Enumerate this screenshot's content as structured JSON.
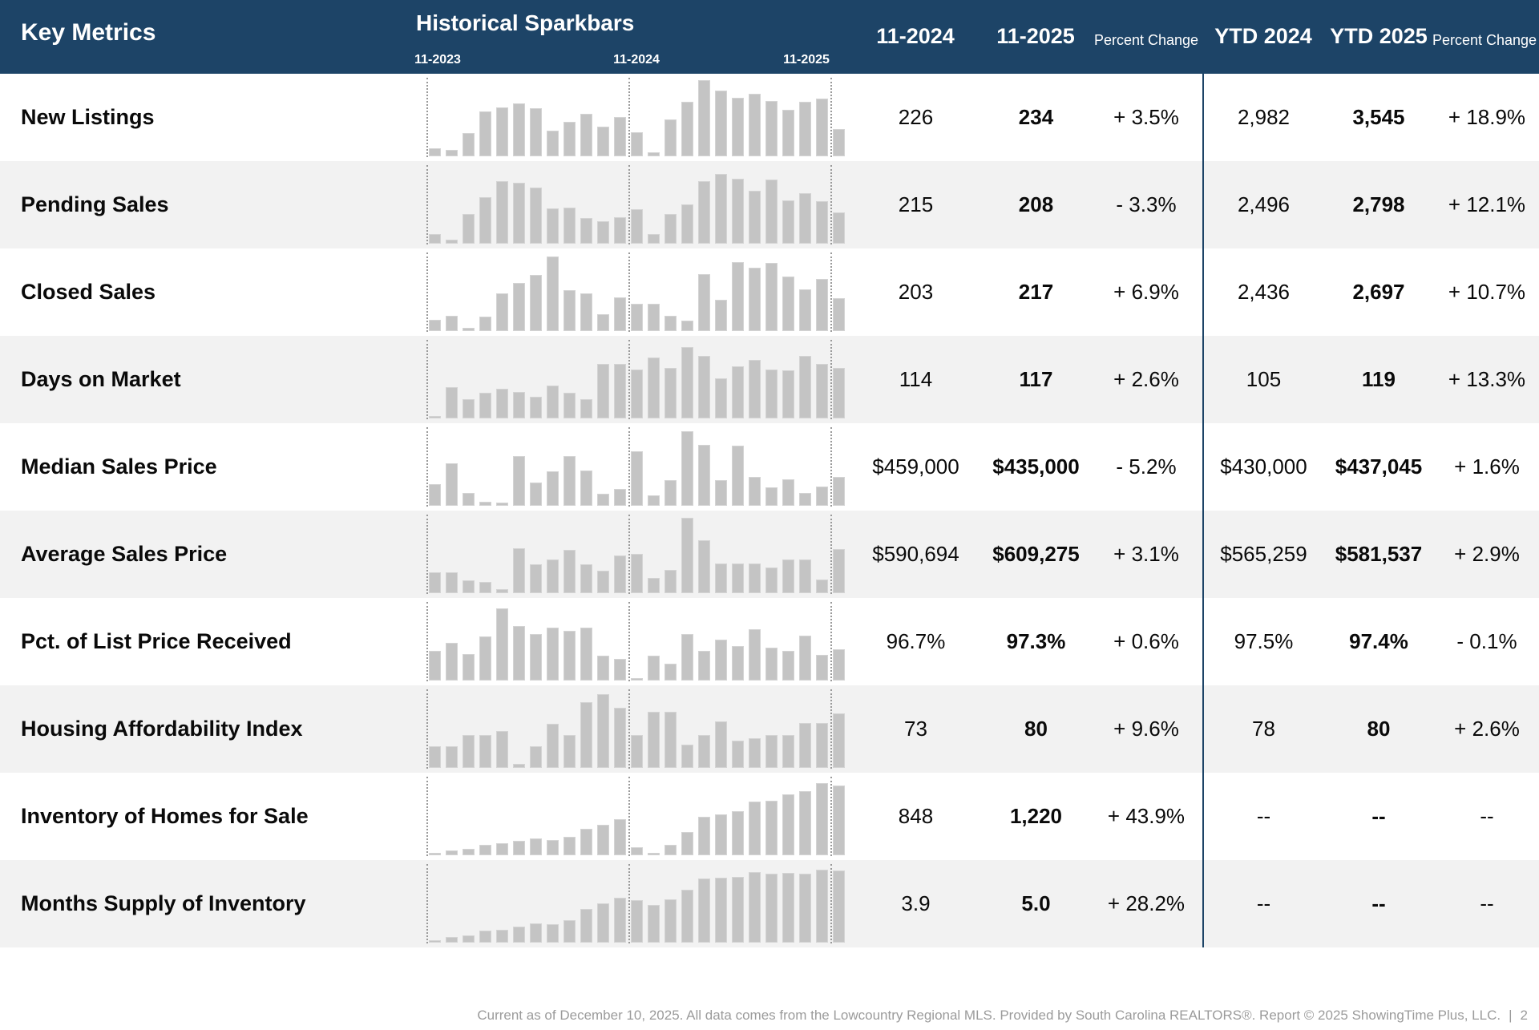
{
  "header": {
    "key_metrics_title": "Key Metrics",
    "sparkbars_title": "Historical Sparkbars",
    "spark_axis_labels": [
      "11-2023",
      "11-2024",
      "11-2025"
    ],
    "columns": {
      "month_2024": "11-2024",
      "month_2025": "11-2025",
      "percent_change": "Percent Change",
      "ytd_2024": "YTD 2024",
      "ytd_2025": "YTD 2025",
      "ytd_percent_change": "Percent Change"
    }
  },
  "rows": [
    {
      "label": "New Listings",
      "m2024": "226",
      "m2025": "234",
      "pct": "+ 3.5%",
      "ytd2024": "2,982",
      "ytd2025": "3,545",
      "ytd_pct": "+ 18.9%",
      "spark": [
        0.1,
        0.08,
        0.3,
        0.58,
        0.63,
        0.68,
        0.62,
        0.33,
        0.44,
        0.55,
        0.38,
        0.5,
        0.31,
        0.05,
        0.47,
        0.7,
        0.98,
        0.85,
        0.75,
        0.8,
        0.71,
        0.6,
        0.7,
        0.74,
        0.35
      ]
    },
    {
      "label": "Pending Sales",
      "m2024": "215",
      "m2025": "208",
      "pct": "- 3.3%",
      "ytd2024": "2,496",
      "ytd2025": "2,798",
      "ytd_pct": "+ 12.1%",
      "spark": [
        0.12,
        0.05,
        0.38,
        0.6,
        0.8,
        0.78,
        0.72,
        0.45,
        0.46,
        0.33,
        0.29,
        0.34,
        0.44,
        0.12,
        0.38,
        0.5,
        0.8,
        0.9,
        0.83,
        0.68,
        0.82,
        0.56,
        0.65,
        0.55,
        0.4
      ]
    },
    {
      "label": "Closed Sales",
      "m2024": "203",
      "m2025": "217",
      "pct": "+ 6.9%",
      "ytd2024": "2,436",
      "ytd2025": "2,697",
      "ytd_pct": "+ 10.7%",
      "spark": [
        0.14,
        0.2,
        0.04,
        0.19,
        0.48,
        0.62,
        0.72,
        0.96,
        0.53,
        0.48,
        0.22,
        0.43,
        0.35,
        0.35,
        0.2,
        0.13,
        0.73,
        0.4,
        0.89,
        0.81,
        0.88,
        0.7,
        0.54,
        0.67,
        0.42
      ]
    },
    {
      "label": "Days on Market",
      "m2024": "114",
      "m2025": "117",
      "pct": "+ 2.6%",
      "ytd2024": "105",
      "ytd2025": "119",
      "ytd_pct": "+ 13.3%",
      "spark": [
        0.03,
        0.4,
        0.25,
        0.33,
        0.38,
        0.34,
        0.28,
        0.42,
        0.33,
        0.25,
        0.7,
        0.7,
        0.63,
        0.78,
        0.65,
        0.92,
        0.8,
        0.52,
        0.67,
        0.75,
        0.63,
        0.62,
        0.8,
        0.7,
        0.65
      ]
    },
    {
      "label": "Median Sales Price",
      "m2024": "$459,000",
      "m2025": "$435,000",
      "pct": "- 5.2%",
      "ytd2024": "$430,000",
      "ytd2025": "$437,045",
      "ytd_pct": "+ 1.6%",
      "spark": [
        0.28,
        0.55,
        0.16,
        0.05,
        0.04,
        0.64,
        0.3,
        0.44,
        0.64,
        0.45,
        0.15,
        0.22,
        0.7,
        0.13,
        0.33,
        0.96,
        0.78,
        0.33,
        0.77,
        0.37,
        0.24,
        0.34,
        0.16,
        0.25,
        0.37
      ]
    },
    {
      "label": "Average Sales Price",
      "m2024": "$590,694",
      "m2025": "$609,275",
      "pct": "+ 3.1%",
      "ytd2024": "$565,259",
      "ytd2025": "$581,537",
      "ytd_pct": "+ 2.9%",
      "spark": [
        0.27,
        0.27,
        0.17,
        0.14,
        0.05,
        0.58,
        0.37,
        0.43,
        0.56,
        0.37,
        0.29,
        0.48,
        0.5,
        0.2,
        0.3,
        0.97,
        0.68,
        0.38,
        0.38,
        0.38,
        0.33,
        0.43,
        0.43,
        0.18,
        0.57
      ]
    },
    {
      "label": "Pct. of List Price Received",
      "m2024": "96.7%",
      "m2025": "97.3%",
      "pct": "+ 0.6%",
      "ytd2024": "97.5%",
      "ytd2025": "97.4%",
      "ytd_pct": "- 0.1%",
      "spark": [
        0.38,
        0.48,
        0.34,
        0.57,
        0.93,
        0.7,
        0.6,
        0.68,
        0.64,
        0.68,
        0.32,
        0.28,
        0.03,
        0.32,
        0.22,
        0.6,
        0.38,
        0.53,
        0.44,
        0.66,
        0.42,
        0.38,
        0.58,
        0.33,
        0.4
      ]
    },
    {
      "label": "Housing Affordability Index",
      "m2024": "73",
      "m2025": "80",
      "pct": "+ 9.6%",
      "ytd2024": "78",
      "ytd2025": "80",
      "ytd_pct": "+ 2.6%",
      "spark": [
        0.28,
        0.28,
        0.42,
        0.42,
        0.47,
        0.05,
        0.28,
        0.57,
        0.42,
        0.85,
        0.95,
        0.77,
        0.42,
        0.72,
        0.72,
        0.3,
        0.42,
        0.6,
        0.35,
        0.38,
        0.42,
        0.42,
        0.58,
        0.58,
        0.7
      ]
    },
    {
      "label": "Inventory of Homes for Sale",
      "m2024": "848",
      "m2025": "1,220",
      "pct": "+ 43.9%",
      "ytd2024": "--",
      "ytd2025": "--",
      "ytd_pct": "--",
      "spark": [
        0.03,
        0.06,
        0.08,
        0.13,
        0.15,
        0.19,
        0.22,
        0.2,
        0.24,
        0.34,
        0.39,
        0.46,
        0.1,
        0.03,
        0.13,
        0.3,
        0.49,
        0.53,
        0.57,
        0.69,
        0.7,
        0.78,
        0.82,
        0.93,
        0.9
      ]
    },
    {
      "label": "Months Supply of Inventory",
      "m2024": "3.9",
      "m2025": "5.0",
      "pct": "+ 28.2%",
      "ytd2024": "--",
      "ytd2025": "--",
      "ytd_pct": "--",
      "spark": [
        0.03,
        0.07,
        0.09,
        0.15,
        0.17,
        0.21,
        0.25,
        0.24,
        0.29,
        0.43,
        0.5,
        0.58,
        0.55,
        0.48,
        0.56,
        0.68,
        0.82,
        0.84,
        0.85,
        0.91,
        0.89,
        0.9,
        0.89,
        0.94,
        0.93
      ]
    }
  ],
  "footer": {
    "text": "Current as of December 10, 2025. All data comes from the Lowcountry Regional MLS. Provided by South Carolina REALTORS®. Report © 2025 ShowingTime Plus, LLC.",
    "separator": "|",
    "page_number": "2"
  },
  "colors": {
    "header_bg": "#1d4467",
    "row_alt_bg": "#f2f2f2",
    "bar_fill": "#c4c4c4",
    "gridline": "#9a9a9a",
    "column_divider": "#1d4467",
    "footer_text": "#9b9b9b"
  },
  "chart_data": {
    "type": "bar",
    "title": "Historical Sparkbars",
    "x_range": [
      "11-2023",
      "11-2025"
    ],
    "points_per_series": 25,
    "x_gridlines": [
      "11-2023",
      "11-2024",
      "11-2025"
    ],
    "ylabel": "relative bar height (0-1, per-row scaled)",
    "ylim": [
      0,
      1
    ],
    "legend_position": "none",
    "series": [
      {
        "name": "New Listings",
        "values": [
          0.1,
          0.08,
          0.3,
          0.58,
          0.63,
          0.68,
          0.62,
          0.33,
          0.44,
          0.55,
          0.38,
          0.5,
          0.31,
          0.05,
          0.47,
          0.7,
          0.98,
          0.85,
          0.75,
          0.8,
          0.71,
          0.6,
          0.7,
          0.74,
          0.35
        ]
      },
      {
        "name": "Pending Sales",
        "values": [
          0.12,
          0.05,
          0.38,
          0.6,
          0.8,
          0.78,
          0.72,
          0.45,
          0.46,
          0.33,
          0.29,
          0.34,
          0.44,
          0.12,
          0.38,
          0.5,
          0.8,
          0.9,
          0.83,
          0.68,
          0.82,
          0.56,
          0.65,
          0.55,
          0.4
        ]
      },
      {
        "name": "Closed Sales",
        "values": [
          0.14,
          0.2,
          0.04,
          0.19,
          0.48,
          0.62,
          0.72,
          0.96,
          0.53,
          0.48,
          0.22,
          0.43,
          0.35,
          0.35,
          0.2,
          0.13,
          0.73,
          0.4,
          0.89,
          0.81,
          0.88,
          0.7,
          0.54,
          0.67,
          0.42
        ]
      },
      {
        "name": "Days on Market",
        "values": [
          0.03,
          0.4,
          0.25,
          0.33,
          0.38,
          0.34,
          0.28,
          0.42,
          0.33,
          0.25,
          0.7,
          0.7,
          0.63,
          0.78,
          0.65,
          0.92,
          0.8,
          0.52,
          0.67,
          0.75,
          0.63,
          0.62,
          0.8,
          0.7,
          0.65
        ]
      },
      {
        "name": "Median Sales Price",
        "values": [
          0.28,
          0.55,
          0.16,
          0.05,
          0.04,
          0.64,
          0.3,
          0.44,
          0.64,
          0.45,
          0.15,
          0.22,
          0.7,
          0.13,
          0.33,
          0.96,
          0.78,
          0.33,
          0.77,
          0.37,
          0.24,
          0.34,
          0.16,
          0.25,
          0.37
        ]
      },
      {
        "name": "Average Sales Price",
        "values": [
          0.27,
          0.27,
          0.17,
          0.14,
          0.05,
          0.58,
          0.37,
          0.43,
          0.56,
          0.37,
          0.29,
          0.48,
          0.5,
          0.2,
          0.3,
          0.97,
          0.68,
          0.38,
          0.38,
          0.38,
          0.33,
          0.43,
          0.43,
          0.18,
          0.57
        ]
      },
      {
        "name": "Pct. of List Price Received",
        "values": [
          0.38,
          0.48,
          0.34,
          0.57,
          0.93,
          0.7,
          0.6,
          0.68,
          0.64,
          0.68,
          0.32,
          0.28,
          0.03,
          0.32,
          0.22,
          0.6,
          0.38,
          0.53,
          0.44,
          0.66,
          0.42,
          0.38,
          0.58,
          0.33,
          0.4
        ]
      },
      {
        "name": "Housing Affordability Index",
        "values": [
          0.28,
          0.28,
          0.42,
          0.42,
          0.47,
          0.05,
          0.28,
          0.57,
          0.42,
          0.85,
          0.95,
          0.77,
          0.42,
          0.72,
          0.72,
          0.3,
          0.42,
          0.6,
          0.35,
          0.38,
          0.42,
          0.42,
          0.58,
          0.58,
          0.7
        ]
      },
      {
        "name": "Inventory of Homes for Sale",
        "values": [
          0.03,
          0.06,
          0.08,
          0.13,
          0.15,
          0.19,
          0.22,
          0.2,
          0.24,
          0.34,
          0.39,
          0.46,
          0.1,
          0.03,
          0.13,
          0.3,
          0.49,
          0.53,
          0.57,
          0.69,
          0.7,
          0.78,
          0.82,
          0.93,
          0.9
        ]
      },
      {
        "name": "Months Supply of Inventory",
        "values": [
          0.03,
          0.07,
          0.09,
          0.15,
          0.17,
          0.21,
          0.25,
          0.24,
          0.29,
          0.43,
          0.5,
          0.58,
          0.55,
          0.48,
          0.56,
          0.68,
          0.82,
          0.84,
          0.85,
          0.91,
          0.89,
          0.9,
          0.89,
          0.94,
          0.93
        ]
      }
    ]
  }
}
